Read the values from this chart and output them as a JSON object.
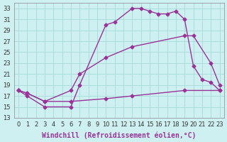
{
  "xlabel": "Windchill (Refroidissement éolien,°C)",
  "bg_color": "#cff0f0",
  "grid_color": "#aadddd",
  "line_color": "#993399",
  "xlim": [
    -0.5,
    23.5
  ],
  "ylim": [
    13,
    34
  ],
  "yticks": [
    13,
    15,
    17,
    19,
    21,
    23,
    25,
    27,
    29,
    31,
    33
  ],
  "xticks": [
    0,
    1,
    2,
    3,
    4,
    5,
    6,
    7,
    8,
    9,
    10,
    11,
    12,
    13,
    14,
    15,
    16,
    17,
    18,
    19,
    20,
    21,
    22,
    23
  ],
  "line1_x": [
    0,
    1,
    3,
    6,
    10,
    13,
    19,
    23
  ],
  "line1_y": [
    18,
    17.5,
    16,
    16,
    16.5,
    17,
    18,
    18
  ],
  "line2_x": [
    0,
    1,
    3,
    6,
    7,
    10,
    13,
    19,
    20,
    22,
    23
  ],
  "line2_y": [
    18,
    17.5,
    16,
    18,
    21,
    24,
    26,
    28,
    28,
    23,
    19
  ],
  "line3_x": [
    0,
    1,
    3,
    6,
    7,
    10,
    11,
    13,
    14,
    15,
    16,
    17,
    18,
    19,
    20,
    21,
    22,
    23
  ],
  "line3_y": [
    18,
    17,
    15,
    15,
    19,
    30,
    30.5,
    33,
    33,
    32.5,
    32,
    32,
    32.5,
    31,
    22.5,
    20,
    19.5,
    18
  ],
  "marker": "D",
  "markersize": 2.5,
  "linewidth": 1.0,
  "xlabel_fontsize": 7,
  "tick_fontsize": 6
}
